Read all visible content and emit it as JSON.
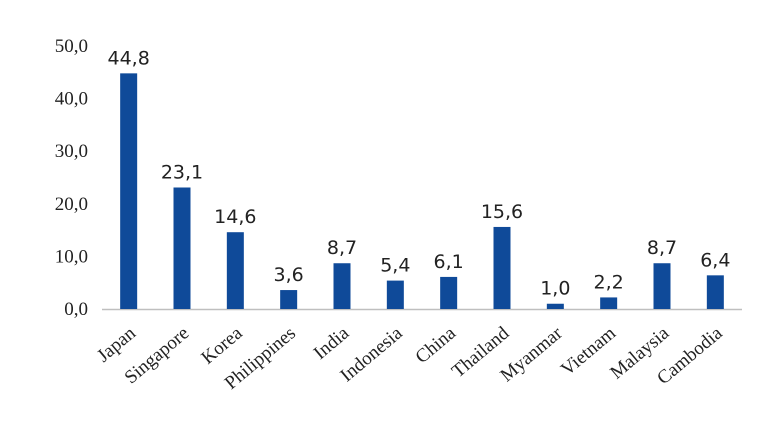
{
  "chart_data": {
    "type": "bar",
    "categories": [
      "Japan",
      "Singapore",
      "Korea",
      "Philippines",
      "India",
      "Indonesia",
      "China",
      "Thailand",
      "Myanmar",
      "Vietnam",
      "Malaysia",
      "Cambodia"
    ],
    "values": [
      44.8,
      23.1,
      14.6,
      3.6,
      8.7,
      5.4,
      6.1,
      15.6,
      1.0,
      2.2,
      8.7,
      6.4
    ],
    "value_labels": [
      "44,8",
      "23,1",
      "14,6",
      "3,6",
      "8,7",
      "5,4",
      "6,1",
      "15,6",
      "1,0",
      "2,2",
      "8,7",
      "6,4"
    ],
    "y_ticks": [
      0,
      10,
      20,
      30,
      40,
      50
    ],
    "y_tick_labels": [
      "0,0",
      "10,0",
      "20,0",
      "30,0",
      "40,0",
      "50,0"
    ],
    "ylim": [
      0,
      50
    ],
    "grid": false,
    "legend": "none",
    "colors": {
      "bar": "#0f4a99",
      "axis": "#bfbfbf",
      "text": "#222222"
    }
  }
}
